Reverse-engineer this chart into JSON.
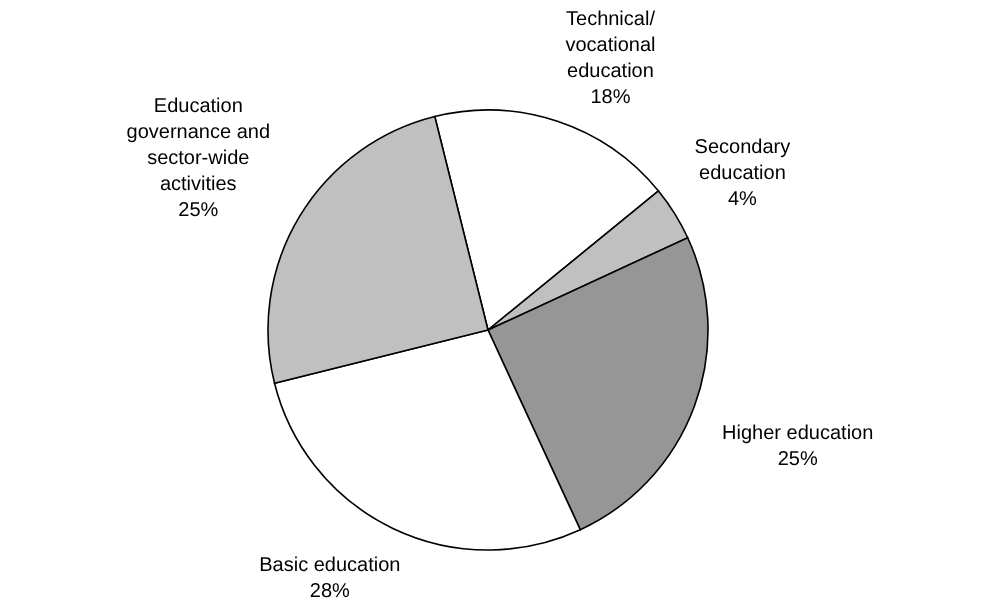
{
  "chart_data": {
    "type": "pie",
    "categories": [
      "Technical/\nvocational\neducation",
      "Secondary\neducation",
      "Higher education",
      "Basic education",
      "Education\ngovernance and\nsector-wide\nactivities"
    ],
    "values": [
      18,
      4,
      25,
      28,
      25
    ],
    "value_labels": [
      "18%",
      "4%",
      "25%",
      "28%",
      "25%"
    ],
    "colors": [
      "#ffffff",
      "#c0c0c0",
      "#969696",
      "#ffffff",
      "#c0c0c0"
    ]
  }
}
